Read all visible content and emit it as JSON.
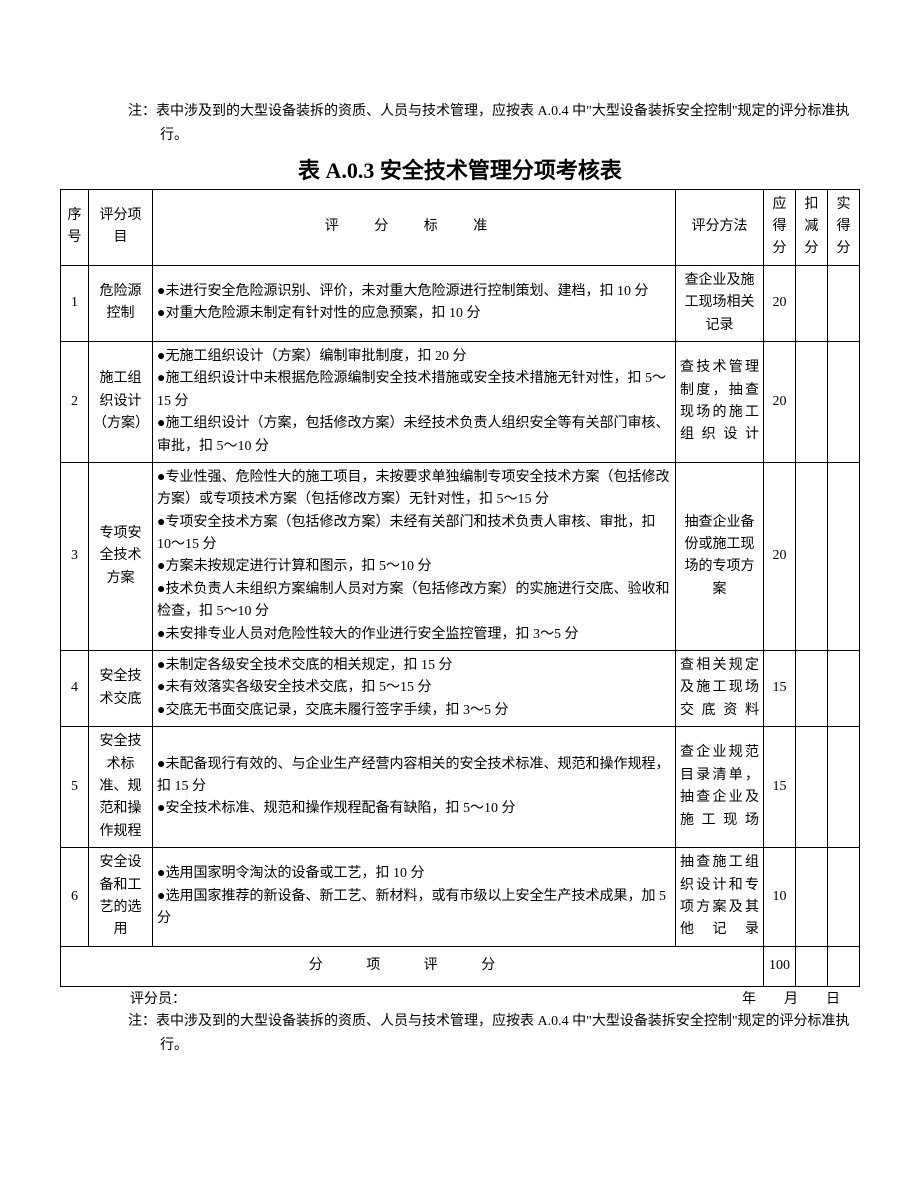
{
  "topNote": "注：表中涉及到的大型设备装拆的资质、人员与技术管理，应按表 A.0.4 中\"大型设备装拆安全控制\"规定的评分标准执行。",
  "title": "表 A.0.3 安全技术管理分项考核表",
  "headers": {
    "seq": "序号",
    "item": "评分项目",
    "criteria": "评 分 标 准",
    "method": "评分方法",
    "score": "应得分",
    "deduct": "扣减分",
    "actual": "实得分"
  },
  "rows": [
    {
      "seq": "1",
      "item": "危险源控制",
      "criteria": "●未进行安全危险源识别、评价，未对重大危险源进行控制策划、建档，扣 10 分\n●对重大危险源未制定有针对性的应急预案，扣 10 分",
      "method": "查企业及施工现场相关记录",
      "methodClass": "method-cell-center",
      "score": "20",
      "deduct": "",
      "actual": ""
    },
    {
      "seq": "2",
      "item": "施工组织设计（方案）",
      "criteria": "●无施工组织设计（方案）编制审批制度，扣 20 分\n●施工组织设计中未根据危险源编制安全技术措施或安全技术措施无针对性，扣 5～15 分\n●施工组织设计（方案，包括修改方案）未经技术负责人组织安全等有关部门审核、审批，扣 5～10 分",
      "method": "查技术管理制度，抽查现场的施工组织设计",
      "methodClass": "method-cell",
      "score": "20",
      "deduct": "",
      "actual": ""
    },
    {
      "seq": "3",
      "item": "专项安全技术方案",
      "criteria": "●专业性强、危险性大的施工项目，未按要求单独编制专项安全技术方案（包括修改方案）或专项技术方案（包括修改方案）无针对性，扣 5～15 分\n●专项安全技术方案（包括修改方案）未经有关部门和技术负责人审核、审批，扣 10～15 分\n●方案未按规定进行计算和图示，扣 5～10 分\n●技术负责人未组织方案编制人员对方案（包括修改方案）的实施进行交底、验收和检查，扣 5～10 分\n●未安排专业人员对危险性较大的作业进行安全监控管理，扣 3～5 分",
      "method": "抽查企业备份或施工现场的专项方案",
      "methodClass": "method-cell-center",
      "score": "20",
      "deduct": "",
      "actual": ""
    },
    {
      "seq": "4",
      "item": "安全技术交底",
      "criteria": "●未制定各级安全技术交底的相关规定，扣 15 分\n●未有效落实各级安全技术交底，扣 5～15 分\n●交底无书面交底记录，交底未履行签字手续，扣 3～5 分",
      "method": "查相关规定及施工现场交底资料",
      "methodClass": "method-cell",
      "score": "15",
      "deduct": "",
      "actual": ""
    },
    {
      "seq": "5",
      "item": "安全技术标准、规范和操作规程",
      "criteria": "●未配备现行有效的、与企业生产经营内容相关的安全技术标准、规范和操作规程，扣 15 分\n●安全技术标准、规范和操作规程配备有缺陷，扣 5～10 分",
      "method": "查企业规范目录清单，抽查企业及施工现场",
      "methodClass": "method-cell",
      "score": "15",
      "deduct": "",
      "actual": ""
    },
    {
      "seq": "6",
      "item": "安全设备和工艺的选用",
      "criteria": "●选用国家明令淘汰的设备或工艺，扣 10 分\n●选用国家推荐的新设备、新工艺、新材料，或有市级以上安全生产技术成果，加 5 分",
      "method": "抽查施工组织设计和专项方案及其他记录",
      "methodClass": "method-cell",
      "score": "10",
      "deduct": "",
      "actual": ""
    }
  ],
  "sumRow": {
    "label": "分 项 评 分",
    "total": "100"
  },
  "footer": {
    "assessor": "评分员：",
    "dateLabel": "年　　月　　日"
  },
  "bottomNote": "注：表中涉及到的大型设备装拆的资质、人员与技术管理，应按表 A.0.4 中\"大型设备装拆安全控制\"规定的评分标准执行。"
}
